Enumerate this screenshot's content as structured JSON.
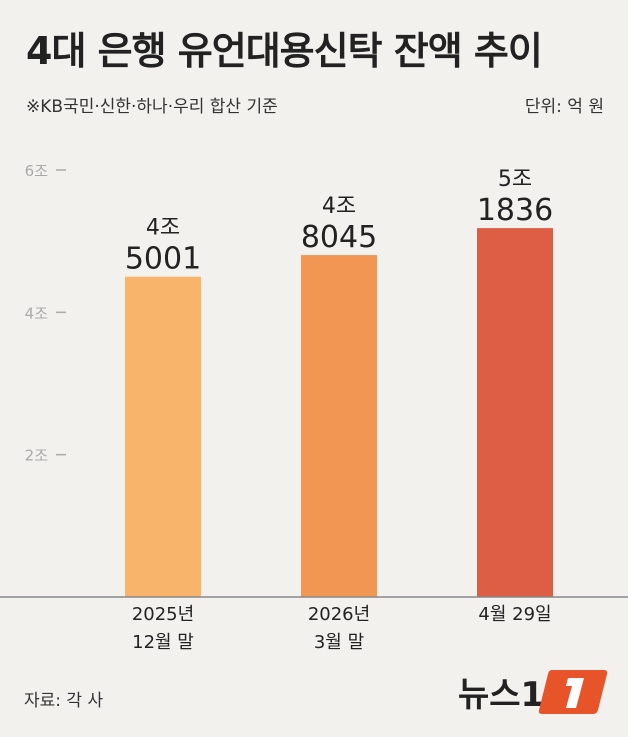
{
  "header": {
    "title": "4대 은행 유언대용신탁 잔액 추이",
    "subtitle": "※KB국민·신한·하나·우리 합산 기준",
    "unit": "단위: 억 원"
  },
  "footer": {
    "source": "자료: 각 사",
    "logo_text": "뉴스1"
  },
  "chart_data": {
    "type": "bar",
    "title": "4대 은행 유언대용신탁 잔액 추이",
    "ylabel": "",
    "ylim": [
      0,
      60000
    ],
    "yticks": [
      {
        "value": 20000,
        "label": "2조"
      },
      {
        "value": 40000,
        "label": "4조"
      },
      {
        "value": 60000,
        "label": "6조"
      }
    ],
    "categories": [
      {
        "line1": "2025년",
        "line2": "12월 말"
      },
      {
        "line1": "2026년",
        "line2": "3월 말"
      },
      {
        "line1": "4월 29일",
        "line2": ""
      }
    ],
    "values": [
      45001,
      48045,
      51836
    ],
    "data_labels": [
      {
        "line1": "4조",
        "line2": "5001"
      },
      {
        "line1": "4조",
        "line2": "8045"
      },
      {
        "line1": "5조",
        "line2": "1836"
      }
    ],
    "colors": [
      "#f9b46b",
      "#f29653",
      "#dd5d45"
    ],
    "grid": false
  }
}
